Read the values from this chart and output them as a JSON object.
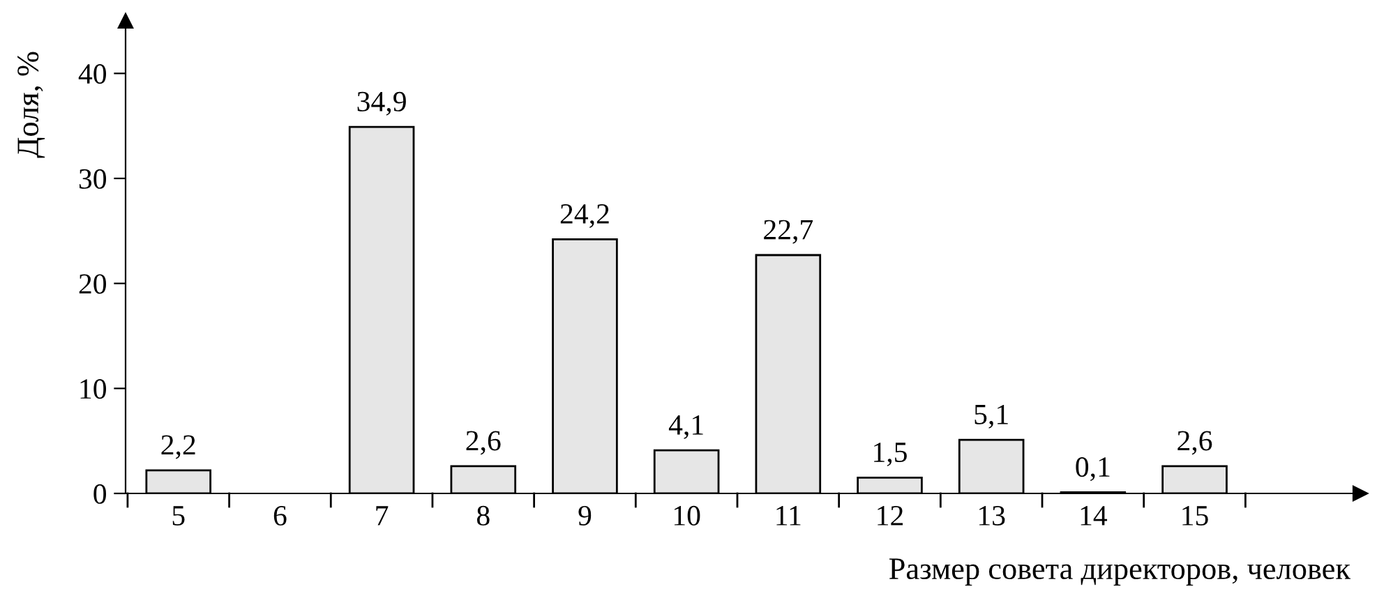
{
  "chart_data": {
    "type": "bar",
    "ylabel": "Доля, %",
    "xlabel": "Размер совета директоров, человек",
    "categories": [
      "5",
      "6",
      "7",
      "8",
      "9",
      "10",
      "11",
      "12",
      "13",
      "14",
      "15"
    ],
    "values": [
      2.2,
      0,
      34.9,
      2.6,
      24.2,
      4.1,
      22.7,
      1.5,
      5.1,
      0.1,
      2.6
    ],
    "value_labels": [
      "2,2",
      null,
      "34,9",
      "2,6",
      "24,2",
      "4,1",
      "22,7",
      "1,5",
      "5,1",
      "0,1",
      "2,6"
    ],
    "color": "#e6e6e6",
    "ylim": [
      0,
      45
    ],
    "yticks": [
      0,
      10,
      20,
      30,
      40
    ],
    "grid": false
  }
}
